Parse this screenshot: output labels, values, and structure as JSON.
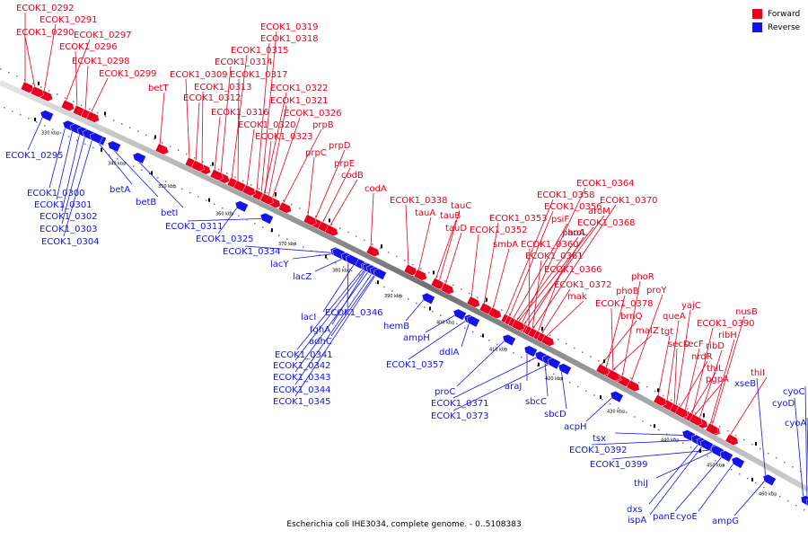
{
  "legend": {
    "forward_label": "Forward",
    "reverse_label": "Reverse",
    "forward_color": "#e8001e",
    "reverse_color": "#1414e6"
  },
  "caption": "Escherichia coli IHE3034, complete genome. - 0..5108383",
  "forward_labels": [
    "ECOK1_0292",
    "ECOK1_0291",
    "ECOK1_0297",
    "ECOK1_0290",
    "ECOK1_0296",
    "ECOK1_0298",
    "ECOK1_0299",
    "betT",
    "ECOK1_0309",
    "ECOK1_0313",
    "ECOK1_0312",
    "ECOK1_0319",
    "ECOK1_0318",
    "ECOK1_0315",
    "ECOK1_0314",
    "ECOK1_0317",
    "ECOK1_0322",
    "ECOK1_0321",
    "ECOK1_0316",
    "ECOK1_0326",
    "ECOK1_0320",
    "prpB",
    "ECOK1_0323",
    "prpD",
    "prpC",
    "prpE",
    "codB",
    "codA",
    "ECOK1_0338",
    "tauA",
    "tauC",
    "tauB",
    "tauD",
    "ECOK1_0364",
    "ECOK1_0358",
    "ECOK1_0370",
    "ECOK1_0356",
    "aroM",
    "psiF",
    "ECOK1_0353",
    "ECOK1_0368",
    "phoA",
    "ECOK1_0352",
    "aroL",
    "smbA",
    "ECOK1_0360",
    "ECOK1_0361",
    "ECOK1_0366",
    "phoR",
    "ECOK1_0372",
    "proY",
    "phoB",
    "mak",
    "ECOK1_0378",
    "yajC",
    "brnQ",
    "queA",
    "nusB",
    "ECOK1_0390",
    "maIZ",
    "tgt",
    "ribH",
    "secF",
    "secD",
    "ribD",
    "nrdR",
    "thiL",
    "pgpA",
    "thiI"
  ],
  "reverse_labels": [
    "ECOK1_0295",
    "ECOK1_0300",
    "ECOK1_0301",
    "betA",
    "ECOK1_0302",
    "betB",
    "ECOK1_0303",
    "betI",
    "ECOK1_0311",
    "ECOK1_0304",
    "ECOK1_0325",
    "ECOK1_0334",
    "lacY",
    "lacZ",
    "lacI",
    "ECOK1_0346",
    "fghA",
    "adhC",
    "ECOK1_0341",
    "ECOK1_0342",
    "ECOK1_0343",
    "ECOK1_0344",
    "ECOK1_0345",
    "hemB",
    "ampH",
    "ECOK1_0357",
    "ddlA",
    "proC",
    "araJ",
    "ECOK1_0371",
    "sbcC",
    "ECOK1_0373",
    "sbcD",
    "acpH",
    "tsx",
    "ECOK1_0392",
    "ECOK1_0399",
    "xseB",
    "cyoC",
    "cyoD",
    "cyoA",
    "dxs",
    "thiJ",
    "ispA",
    "panE",
    "cyoE",
    "ampG"
  ],
  "kbp_ticks": [
    "330 kbp",
    "340 kbp",
    "350 kbp",
    "360 kbp",
    "370 kbp",
    "380 kbp",
    "390 kbp",
    "400 kbp",
    "410 kbp",
    "420 kbp",
    "430 kbp",
    "440 kbp",
    "450 kbp",
    "460 kbp"
  ]
}
